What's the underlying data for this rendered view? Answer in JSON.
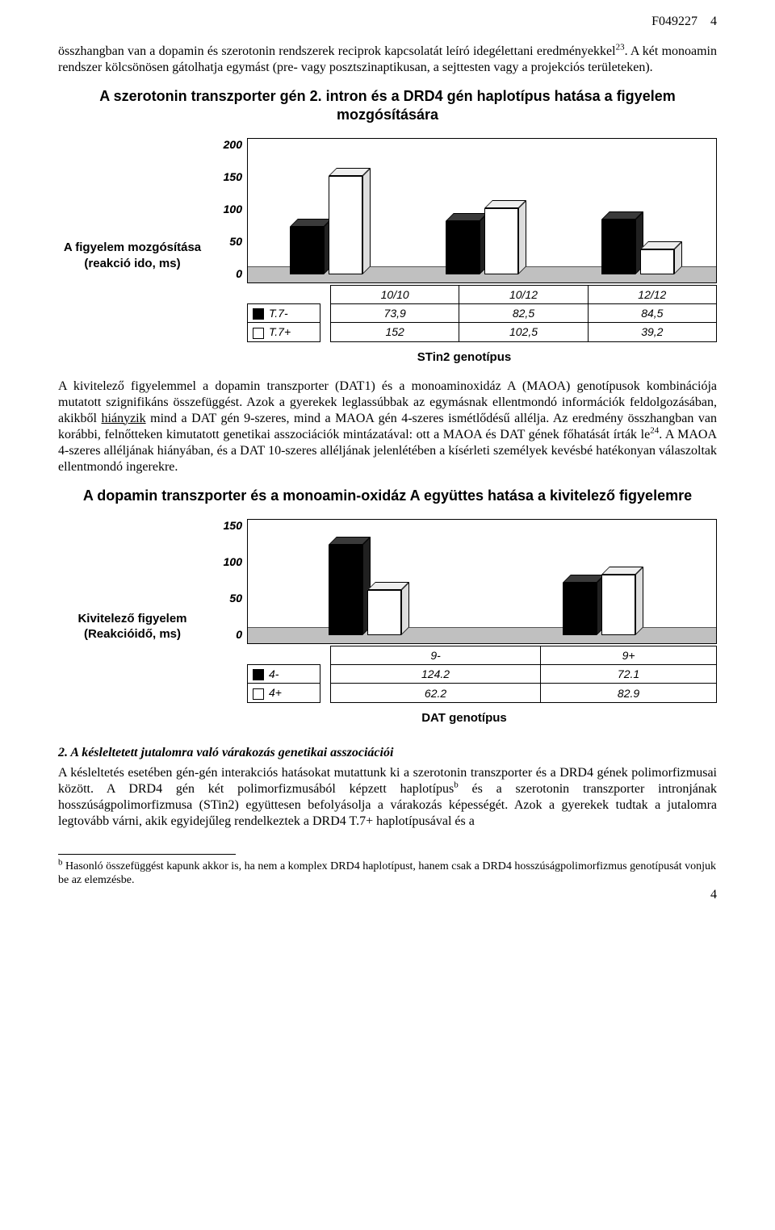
{
  "header": {
    "code": "F049227",
    "pagenum_top": "4"
  },
  "para1_a": "összhangban van a dopamin és szerotonin rendszerek reciprok kapcsolatát leíró idegélettani eredményekkel",
  "para1_sup": "23",
  "para1_b": ". A két monoamin rendszer kölcsönösen gátolhatja egymást (pre- vagy posztszinaptikusan, a sejttesten vagy a projekciós területeken).",
  "chart1": {
    "title": "A szerotonin transzporter gén 2. intron és a DRD4 gén haplotípus hatása a figyelem mozgósítására",
    "ylabel": "A figyelem mozgósítása (reakció ido, ms)",
    "ymax": 200,
    "yticks": [
      "200",
      "150",
      "100",
      "50",
      "0"
    ],
    "categories": [
      "10/10",
      "10/12",
      "12/12"
    ],
    "series": [
      {
        "name": "T.7-",
        "color": "#000000",
        "top": "#3a3a3a",
        "side": "#202020",
        "values": [
          73.9,
          82.5,
          84.5
        ],
        "labels": [
          "73,9",
          "82,5",
          "84,5"
        ]
      },
      {
        "name": "T.7+",
        "color": "#ffffff",
        "top": "#eeeeee",
        "side": "#dddddd",
        "values": [
          152,
          102.5,
          39.2
        ],
        "labels": [
          "152",
          "102,5",
          "39,2"
        ]
      }
    ],
    "xaxis_title": "STin2 genotípus",
    "plot_bg": "#c0c0c0"
  },
  "para2_a": "A kivitelező figyelemmel a dopamin transzporter (DAT1) és a monoaminoxidáz A (MAOA) genotípusok kombinációja mutatott szignifikáns összefüggést. Azok a gyerekek leglassúbbak az egymásnak ellentmondó információk feldolgozásában, akikből ",
  "para2_u": "hiányzik",
  "para2_b": " mind a DAT gén 9-szeres, mind a MAOA gén 4-szeres ismétlődésű allélja. Az eredmény összhangban van korábbi, felnőtteken kimutatott genetikai asszociációk mintázatával: ott a MAOA és DAT gének főhatását írták le",
  "para2_sup": "24",
  "para2_c": ". A MAOA 4-szeres alléljának hiányában, és a DAT 10-szeres alléljának jelenlétében a kísérleti személyek kevésbé hatékonyan válaszoltak ellentmondó ingerekre.",
  "chart2": {
    "title": "A dopamin transzporter és a monoamin-oxidáz A együttes hatása a kivitelező figyelemre",
    "ylabel": "Kivitelező figyelem (Reakcióidő, ms)",
    "ymax": 150,
    "yticks": [
      "150",
      "100",
      "50",
      "0"
    ],
    "categories": [
      "9-",
      "9+"
    ],
    "series": [
      {
        "name": "4-",
        "color": "#000000",
        "top": "#3a3a3a",
        "side": "#202020",
        "values": [
          124.2,
          72.1
        ],
        "labels": [
          "124.2",
          "72.1"
        ]
      },
      {
        "name": "4+",
        "color": "#ffffff",
        "top": "#eeeeee",
        "side": "#dddddd",
        "values": [
          62.2,
          82.9
        ],
        "labels": [
          "62.2",
          "82.9"
        ]
      }
    ],
    "xaxis_title": "DAT genotípus"
  },
  "section2_hd": "2. A késleltetett jutalomra való várakozás genetikai asszociációi",
  "para3_a": "A késleltetés esetében gén-gén interakciós hatásokat mutattunk ki a szerotonin transzporter és a DRD4 gének polimorfizmusai között. A DRD4 gén két polimorfizmusából képzett haplotípus",
  "para3_supb": "b",
  "para3_b": " és a szerotonin transzporter intronjának hosszúságpolimorfizmusa (STin2) együttesen befolyásolja a várakozás képességét. Azok a gyerekek tudtak a jutalomra legtovább várni, akik egyidejűleg rendelkeztek a DRD4 T.7+ haplotípusával és a",
  "footnote": {
    "marker": "b",
    "text": " Hasonló összefüggést kapunk akkor is, ha nem a komplex DRD4 haplotípust, hanem csak a DRD4 hosszúságpolimorfizmus genotípusát vonjuk be az elemzésbe."
  },
  "pagenum_bottom": "4"
}
